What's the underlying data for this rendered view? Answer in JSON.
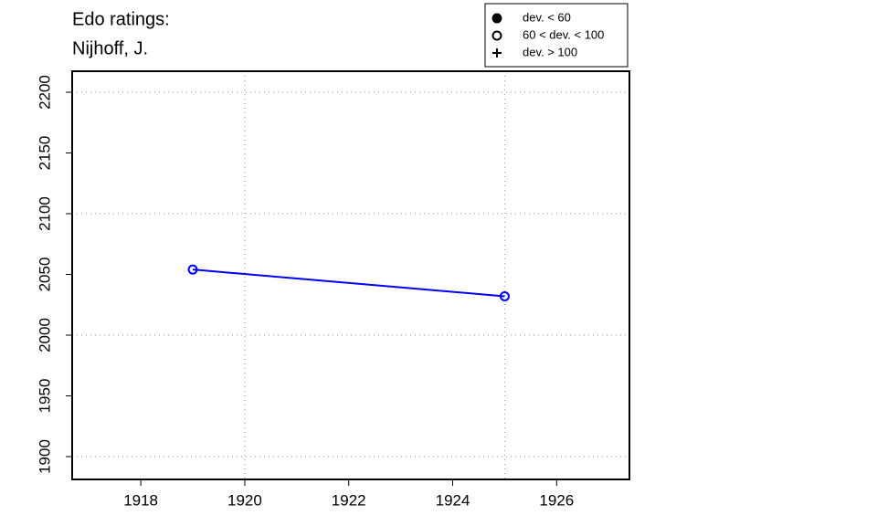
{
  "chart_data": {
    "type": "line",
    "title": [
      "Edo ratings:",
      "Nijhoff, J."
    ],
    "x": [
      1919,
      1925
    ],
    "series": [
      {
        "color": "#0000ff",
        "values": [
          2054,
          2032
        ],
        "markers": [
          "open",
          "open"
        ]
      }
    ],
    "xlim": [
      1916.68,
      1927.4
    ],
    "xticks": [
      1918,
      1920,
      1922,
      1924,
      1926
    ],
    "ylim": [
      1881.2,
      2217.3
    ],
    "yticks": [
      1900,
      1950,
      2000,
      2050,
      2100,
      2150,
      2200
    ],
    "xgrid": [
      1920,
      1925
    ],
    "ygrid": [
      1900,
      2000,
      2100,
      2200
    ],
    "legend": {
      "position": "top-right",
      "entries": [
        {
          "label": "dev. < 60",
          "marker": "filled"
        },
        {
          "label": "60 < dev. < 100",
          "marker": "open"
        },
        {
          "label": "dev. > 100",
          "marker": "plus"
        }
      ]
    }
  }
}
